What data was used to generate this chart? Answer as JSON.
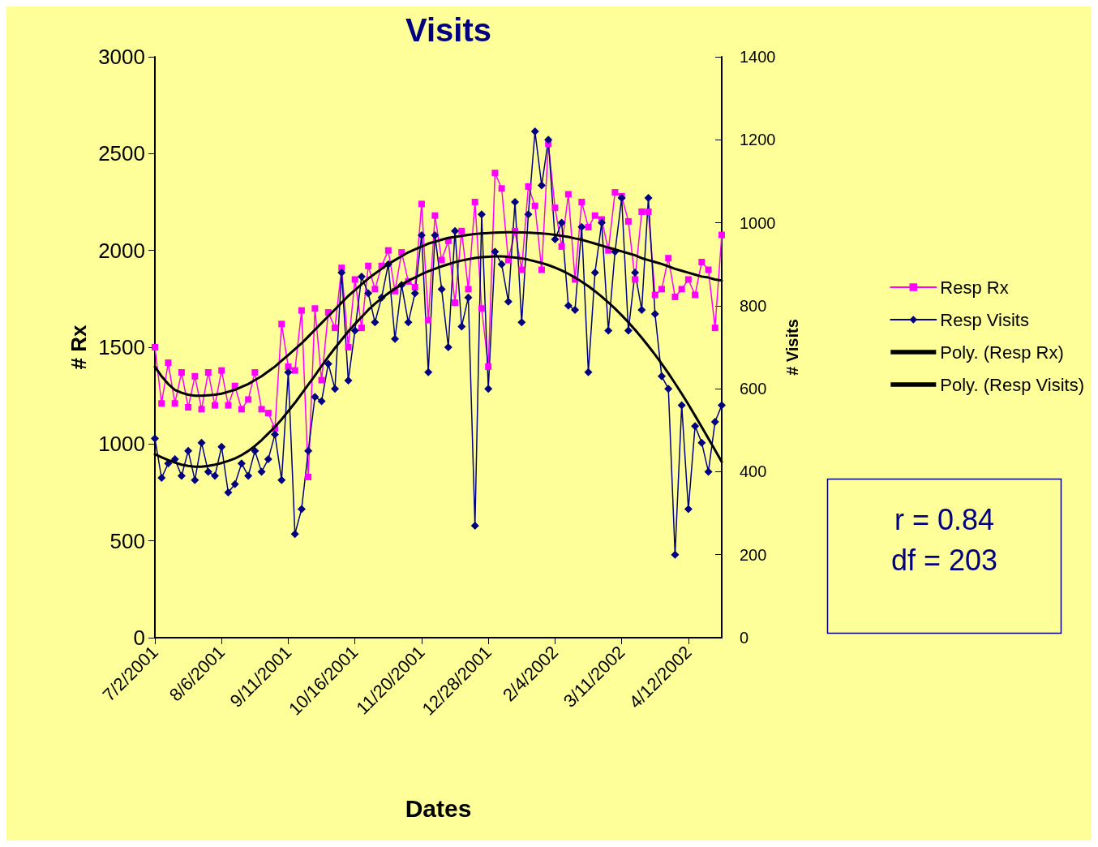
{
  "chart_data": {
    "type": "line",
    "title": "Visits",
    "xlabel": "Dates",
    "ylabel": "# Rx",
    "y2label": "# Visits",
    "categories": [
      "7/2/2001",
      null,
      null,
      null,
      null,
      null,
      null,
      null,
      null,
      null,
      "8/6/2001",
      null,
      null,
      null,
      null,
      null,
      null,
      null,
      null,
      null,
      "9/11/2001",
      null,
      null,
      null,
      null,
      null,
      null,
      null,
      null,
      null,
      "10/16/2001",
      null,
      null,
      null,
      null,
      null,
      null,
      null,
      null,
      null,
      "11/20/2001",
      null,
      null,
      null,
      null,
      null,
      null,
      null,
      null,
      null,
      "12/28/2001",
      null,
      null,
      null,
      null,
      null,
      null,
      null,
      null,
      null,
      "2/4/2002",
      null,
      null,
      null,
      null,
      null,
      null,
      null,
      null,
      null,
      "3/11/2002",
      null,
      null,
      null,
      null,
      null,
      null,
      null,
      null,
      null,
      "4/12/2002",
      null,
      null,
      null,
      null,
      null
    ],
    "series": [
      {
        "name": "Resp Rx",
        "color": "#ff00ff",
        "marker": "square",
        "values": [
          1500,
          1210,
          1420,
          1210,
          1370,
          1190,
          1350,
          1180,
          1370,
          1200,
          1380,
          1200,
          1300,
          1180,
          1230,
          1370,
          1180,
          1160,
          1080,
          1620,
          1400,
          1380,
          1690,
          830,
          1700,
          1330,
          1680,
          1600,
          1910,
          1500,
          1850,
          1600,
          1920,
          1800,
          1920,
          2000,
          1790,
          1990,
          1840,
          1810,
          2240,
          1640,
          2180,
          1950,
          2050,
          1730,
          2100,
          1800,
          2250,
          1700,
          1400,
          2400,
          2320,
          1950,
          2100,
          1900,
          2330,
          2230,
          1900,
          2550,
          2220,
          2020,
          2290,
          1850,
          2250,
          2120,
          2180,
          2160,
          2000,
          2300,
          2280,
          2150,
          1850,
          2200,
          2200,
          1770,
          1800,
          1960,
          1760,
          1800,
          1850,
          1770,
          1940,
          1900,
          1600,
          2080
        ]
      },
      {
        "name": "Resp Visits",
        "color": "#000080",
        "marker": "diamond",
        "axis": "y2",
        "values": [
          480,
          385,
          420,
          430,
          390,
          450,
          380,
          470,
          400,
          390,
          460,
          350,
          370,
          420,
          390,
          450,
          400,
          430,
          490,
          380,
          640,
          250,
          310,
          450,
          580,
          570,
          660,
          600,
          880,
          620,
          740,
          870,
          830,
          760,
          820,
          900,
          720,
          850,
          760,
          830,
          970,
          640,
          970,
          840,
          700,
          980,
          750,
          820,
          270,
          1020,
          600,
          930,
          900,
          810,
          1050,
          760,
          1020,
          1220,
          1090,
          1200,
          960,
          1000,
          800,
          790,
          990,
          640,
          880,
          1000,
          740,
          930,
          1060,
          740,
          880,
          790,
          1060,
          780,
          630,
          600,
          200,
          560,
          310,
          510,
          470,
          400,
          520,
          560
        ]
      },
      {
        "name": "Poly. (Resp Rx)",
        "color": "#000000",
        "marker": "none",
        "values": [
          1400,
          1350,
          1310,
          1280,
          1265,
          1255,
          1250,
          1250,
          1252,
          1255,
          1260,
          1270,
          1280,
          1295,
          1310,
          1330,
          1350,
          1375,
          1400,
          1430,
          1460,
          1490,
          1520,
          1555,
          1590,
          1625,
          1660,
          1695,
          1730,
          1765,
          1795,
          1825,
          1855,
          1880,
          1905,
          1930,
          1950,
          1970,
          1990,
          2005,
          2020,
          2035,
          2045,
          2055,
          2065,
          2070,
          2075,
          2080,
          2085,
          2088,
          2090,
          2092,
          2093,
          2094,
          2094,
          2093,
          2092,
          2090,
          2088,
          2085,
          2080,
          2075,
          2070,
          2062,
          2055,
          2045,
          2035,
          2025,
          2015,
          2005,
          1995,
          1985,
          1975,
          1960,
          1950,
          1940,
          1930,
          1918,
          1905,
          1895,
          1885,
          1875,
          1865,
          1860,
          1850,
          1845
        ]
      },
      {
        "name": "Poly. (Resp Visits)",
        "color": "#000000",
        "marker": "none",
        "axis": "y2",
        "values": [
          442,
          435,
          428,
          422,
          417,
          414,
          412,
          412,
          414,
          417,
          421,
          426,
          432,
          440,
          450,
          462,
          476,
          492,
          508,
          526,
          546,
          566,
          588,
          610,
          632,
          655,
          677,
          698,
          718,
          738,
          756,
          773,
          790,
          805,
          818,
          830,
          841,
          851,
          860,
          868,
          876,
          883,
          889,
          895,
          900,
          905,
          909,
          912,
          915,
          917,
          918,
          919,
          919,
          918,
          916,
          914,
          911,
          907,
          903,
          898,
          892,
          885,
          877,
          868,
          858,
          847,
          835,
          822,
          808,
          793,
          777,
          760,
          742,
          723,
          703,
          682,
          660,
          637,
          613,
          588,
          562,
          535,
          508,
          480,
          452,
          424
        ]
      }
    ],
    "ylim": [
      0,
      3000
    ],
    "yticks": [
      0,
      500,
      1000,
      1500,
      2000,
      2500,
      3000
    ],
    "y2lim": [
      0,
      1400
    ],
    "y2ticks": [
      0,
      200,
      400,
      600,
      800,
      1000,
      1200,
      1400
    ],
    "grid": false,
    "legend": "right",
    "line_style": "solid",
    "annotations": [
      "r = 0.84",
      "df = 203"
    ]
  }
}
